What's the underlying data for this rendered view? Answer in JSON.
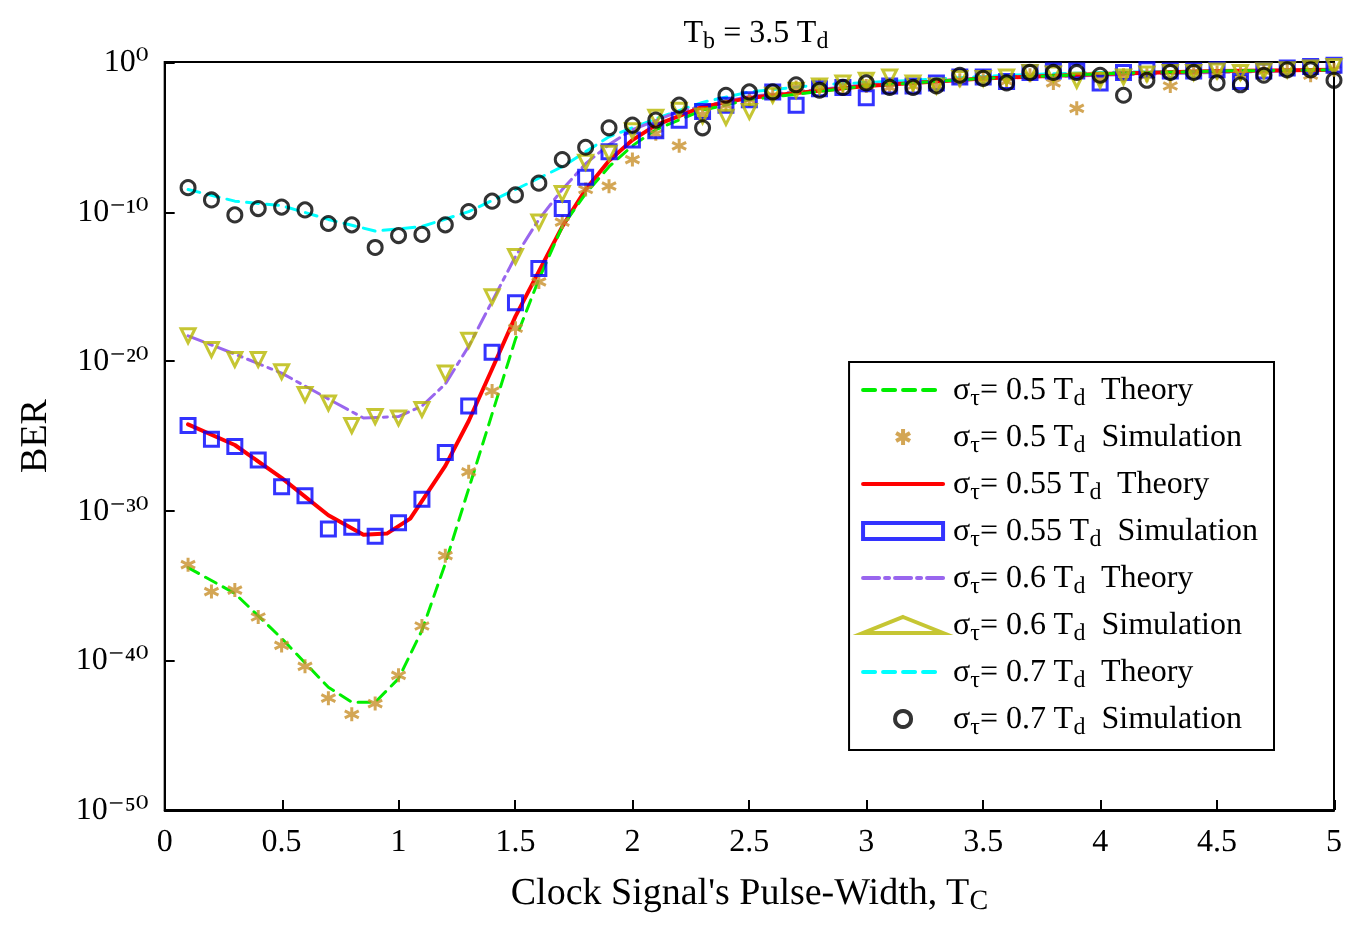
{
  "chart_data": {
    "type": "scatter",
    "title": "T$_{b}$ = 3.5 T$_{d}$",
    "xlabel": "Clock Signal's Pulse-Width, T$_{C}$",
    "ylabel": "BER",
    "log": "y",
    "grid": false,
    "legend": "right",
    "xlim": [
      0,
      5
    ],
    "xticks": [
      0,
      0.5,
      1,
      1.5,
      2,
      2.5,
      3,
      3.5,
      4,
      4.5,
      5
    ],
    "ylim": [
      1e-50,
      1
    ],
    "yticks": [
      {
        "value": 1e-50,
        "label": "10⁻⁵⁰"
      },
      {
        "value": 1e-40,
        "label": "10⁻⁴⁰"
      },
      {
        "value": 1e-30,
        "label": "10⁻³⁰"
      },
      {
        "value": 1e-20,
        "label": "10⁻²⁰"
      },
      {
        "value": 1e-10,
        "label": "10⁻¹⁰"
      },
      {
        "value": 1,
        "label": "10⁰"
      }
    ],
    "x": [
      0.1,
      0.2,
      0.3,
      0.4,
      0.5,
      0.6,
      0.7,
      0.8,
      0.9,
      1.0,
      1.1,
      1.2,
      1.3,
      1.4,
      1.5,
      1.6,
      1.7,
      1.8,
      1.9,
      2.0,
      2.1,
      2.2,
      2.3,
      2.4,
      2.5,
      2.6,
      2.7,
      2.8,
      2.9,
      3.0,
      3.1,
      3.2,
      3.3,
      3.4,
      3.5,
      3.6,
      3.7,
      3.8,
      3.9,
      4.0,
      4.1,
      4.2,
      4.3,
      4.4,
      4.5,
      4.6,
      4.7,
      4.8,
      4.9,
      5.0
    ],
    "series": [
      {
        "name": "σ$_{τ}$= 0.5 T$_{d}$  Theory",
        "type": "line",
        "line_style": "dashed",
        "marker": "none",
        "color": "#00ee00",
        "x": [
          0.1,
          0.3,
          0.5,
          0.7,
          0.8,
          0.9,
          1.0,
          1.1,
          1.2,
          1.3,
          1.4,
          1.5,
          1.6,
          1.7,
          1.8,
          1.9,
          2.0,
          2.1,
          2.3,
          2.5,
          3,
          3.5,
          4,
          4.5,
          5
        ],
        "values": [
          1.6e-34,
          3e-36,
          3e-39,
          1.6e-42,
          1.6e-43,
          1.6e-43,
          6e-42,
          1e-38,
          3e-34,
          3e-29,
          3e-24,
          3e-19,
          3e-15,
          1e-11,
          1.6e-09,
          1e-07,
          2.5e-06,
          3e-05,
          0.0006,
          0.003,
          0.025,
          0.08,
          0.16,
          0.25,
          0.3
        ]
      },
      {
        "name": "σ$_{τ}$= 0.5 T$_{d}$  Simulation",
        "type": "scatter",
        "marker": "cross",
        "color": "#c8902a",
        "values": [
          2.5e-34,
          4e-36,
          5e-36,
          8e-38,
          1e-39,
          4e-41,
          3e-43,
          2.5e-44,
          1.3e-43,
          1e-41,
          2e-38,
          1e-33,
          4e-28,
          1e-22,
          1.6e-18,
          2e-15,
          2e-11,
          3e-09,
          5e-09,
          3e-07,
          1.6e-05,
          2.5e-06,
          0.0003,
          0.0013,
          0.003,
          0.006,
          0.02,
          0.025,
          0.025,
          0.025,
          0.02,
          0.025,
          0.025,
          0.06,
          0.08,
          0.05,
          0.13,
          0.04,
          0.0008,
          0.08,
          0.13,
          0.13,
          0.025,
          0.2,
          0.2,
          0.16,
          0.25,
          0.25,
          0.13,
          0.3
        ]
      },
      {
        "name": "σ$_{τ}$= 0.55 T$_{d}$  Theory",
        "type": "line",
        "line_style": "solid",
        "marker": "none",
        "color": "#ff0000",
        "x": [
          0.1,
          0.3,
          0.5,
          0.7,
          0.85,
          0.95,
          1.05,
          1.2,
          1.3,
          1.4,
          1.5,
          1.6,
          1.7,
          1.8,
          1.9,
          2.0,
          2.1,
          2.3,
          2.5,
          3,
          3.5,
          4,
          4.5,
          5
        ],
        "values": [
          6e-25,
          2.5e-26,
          1.6e-28,
          5e-31,
          2.5e-32,
          3e-32,
          3e-31,
          1e-27,
          1e-24,
          3e-21,
          1e-17,
          1e-14,
          1e-11,
          3e-09,
          2.5e-07,
          6e-06,
          6e-05,
          0.001,
          0.004,
          0.025,
          0.08,
          0.16,
          0.25,
          0.3
        ]
      },
      {
        "name": "σ$_{τ}$= 0.55 T$_{d}$  Simulation",
        "type": "scatter",
        "marker": "square",
        "color": "#0000ff",
        "values": [
          5e-25,
          6e-26,
          2e-26,
          2.5e-27,
          4e-29,
          1e-29,
          6e-32,
          8e-32,
          2e-32,
          1.6e-31,
          6e-30,
          8e-27,
          1e-23,
          4e-20,
          8e-17,
          1.6e-14,
          1.6e-10,
          2e-08,
          1e-06,
          6e-06,
          2.5e-05,
          0.00013,
          0.0005,
          0.0013,
          0.003,
          0.01,
          0.0013,
          0.016,
          0.02,
          0.004,
          0.025,
          0.025,
          0.04,
          0.1,
          0.1,
          0.05,
          0.2,
          0.25,
          0.25,
          0.04,
          0.2,
          0.3,
          0.25,
          0.25,
          0.3,
          0.05,
          0.25,
          0.4,
          0.5,
          0.6
        ]
      },
      {
        "name": "σ$_{τ}$= 0.6 T$_{d}$  Theory",
        "type": "line",
        "line_style": "dashdot",
        "marker": "none",
        "color": "#9966ee",
        "x": [
          0.1,
          0.3,
          0.5,
          0.7,
          0.85,
          1.0,
          1.1,
          1.2,
          1.3,
          1.4,
          1.5,
          1.6,
          1.7,
          1.8,
          1.9,
          2.0,
          2.2,
          2.5,
          3,
          3.5,
          4,
          4.5,
          5
        ],
        "values": [
          5e-19,
          3e-20,
          1.6e-21,
          3e-23,
          1.6e-24,
          2e-24,
          1e-23,
          3e-22,
          1e-19,
          1e-16,
          1e-13,
          3e-11,
          3e-09,
          1.6e-07,
          3e-06,
          3e-05,
          0.0005,
          0.005,
          0.03,
          0.08,
          0.13,
          0.2,
          0.3
        ]
      },
      {
        "name": "σ$_{τ}$= 0.6 T$_{d}$  Simulation",
        "type": "scatter",
        "marker": "triangle",
        "color": "#b8b800",
        "values": [
          5e-19,
          6e-20,
          1.3e-20,
          1.3e-20,
          2e-21,
          6e-23,
          1.6e-23,
          5e-25,
          2e-24,
          1.6e-24,
          6e-24,
          1.6e-21,
          2.5e-19,
          2e-16,
          1e-13,
          2e-11,
          1.6e-09,
          2e-07,
          8e-07,
          2.5e-05,
          0.0002,
          0.0006,
          0.00025,
          0.0002,
          0.0005,
          0.006,
          0.013,
          0.025,
          0.04,
          0.06,
          0.1,
          0.04,
          0.025,
          0.08,
          0.08,
          0.1,
          0.2,
          0.16,
          0.06,
          0.06,
          0.1,
          0.16,
          0.2,
          0.2,
          0.25,
          0.2,
          0.25,
          0.3,
          0.4,
          0.5
        ]
      },
      {
        "name": "σ$_{τ}$= 0.7 T$_{d}$  Theory",
        "type": "line",
        "line_style": "dashed",
        "marker": "none",
        "color": "#00ffff",
        "x": [
          0.1,
          0.3,
          0.5,
          0.7,
          0.9,
          1.1,
          1.3,
          1.5,
          1.7,
          1.9,
          2.1,
          2.3,
          2.5,
          2.8,
          3.2,
          3.6,
          4,
          4.5,
          5
        ],
        "values": [
          3e-09,
          5e-10,
          2.5e-10,
          3e-11,
          5e-12,
          1e-11,
          1e-10,
          3e-09,
          1e-07,
          1e-05,
          0.00016,
          0.002,
          0.01,
          0.03,
          0.06,
          0.13,
          0.2,
          0.25,
          0.3
        ]
      },
      {
        "name": "σ$_{τ}$= 0.7 T$_{d}$  Simulation",
        "type": "scatter",
        "marker": "circle",
        "color": "#000000",
        "values": [
          4e-09,
          6e-10,
          6e-11,
          1.6e-10,
          2e-10,
          1.3e-10,
          1.6e-11,
          1.3e-11,
          4e-13,
          2.5e-12,
          3e-12,
          1.3e-11,
          1e-10,
          5e-10,
          1.3e-09,
          8e-09,
          3e-07,
          2e-06,
          4e-05,
          6e-05,
          0.00013,
          0.0013,
          4e-05,
          0.006,
          0.01,
          0.01,
          0.03,
          0.013,
          0.02,
          0.04,
          0.02,
          0.02,
          0.025,
          0.13,
          0.08,
          0.04,
          0.2,
          0.2,
          0.2,
          0.13,
          0.006,
          0.06,
          0.2,
          0.2,
          0.04,
          0.03,
          0.13,
          0.3,
          0.3,
          0.06
        ]
      }
    ]
  }
}
